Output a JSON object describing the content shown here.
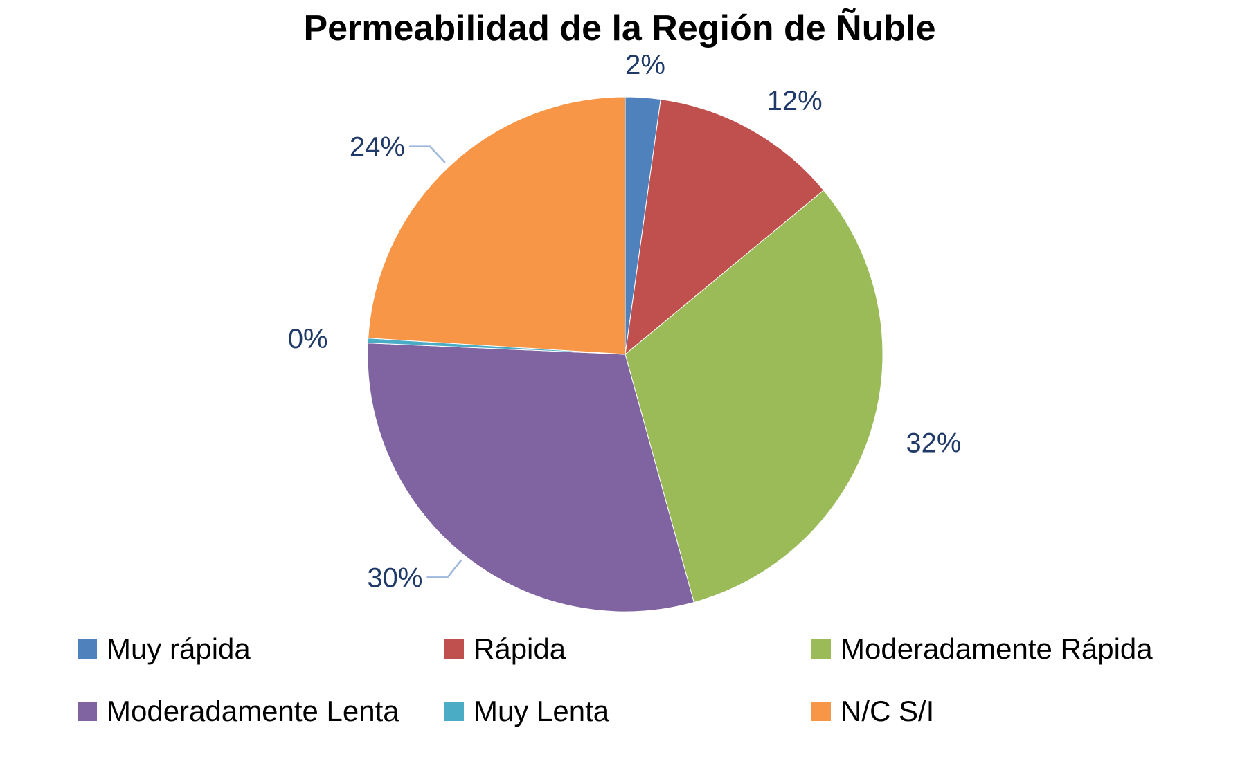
{
  "chart_data": {
    "type": "pie",
    "title": "Permeabilidad de la Región de Ñuble",
    "categories": [
      "Muy rápida",
      "Rápida",
      "Moderadamente Rápida",
      "Moderadamente Lenta",
      "Muy Lenta",
      "N/C S/I"
    ],
    "values": [
      2.2,
      11.8,
      31.7,
      30.0,
      0.3,
      24.0
    ],
    "data_labels": [
      "2%",
      "12%",
      "32%",
      "30%",
      "0%",
      "24%"
    ],
    "colors": [
      "#4F81BD",
      "#C0504D",
      "#9BBB59",
      "#8064A2",
      "#4BACC6",
      "#F79646"
    ],
    "legend_position": "bottom"
  }
}
